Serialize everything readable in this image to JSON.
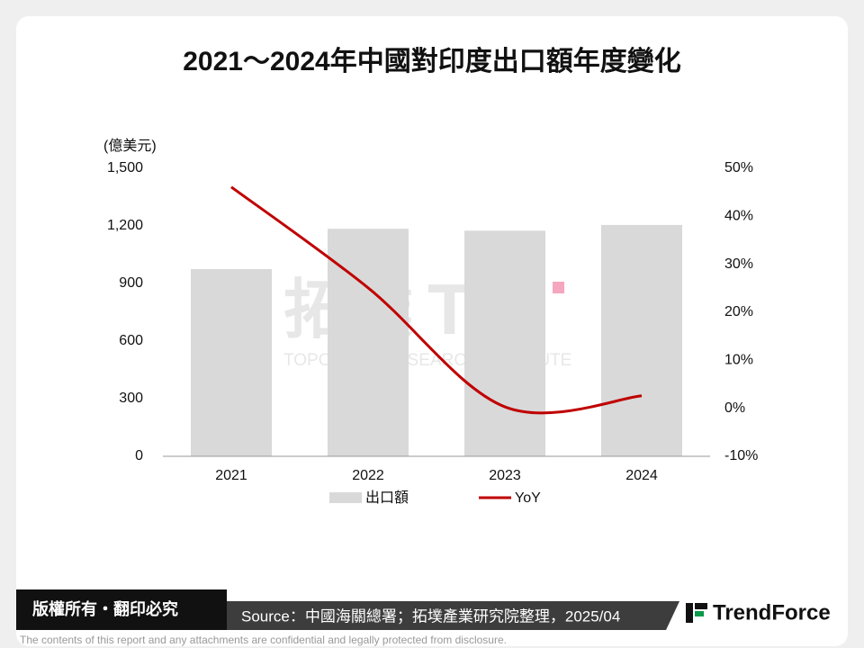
{
  "slide": {
    "title": "2021～2024年中國對印度出口額年度變化"
  },
  "watermark": {
    "logo": "拓墣",
    "mark": "TRI",
    "name": "TOPOLOGY RESEARCH INSTITUTE"
  },
  "chart_data": {
    "type": "combo",
    "y_label": "(億美元)",
    "categories": [
      "2021",
      "2022",
      "2023",
      "2024"
    ],
    "series": [
      {
        "name": "出口額",
        "type": "bar",
        "color": "#d9d9d9",
        "values": [
          975,
          1185,
          1175,
          1205
        ]
      },
      {
        "name": "YoY",
        "type": "line",
        "axis": "y2",
        "color": "#c00000",
        "values": [
          46.1,
          25.1,
          0.3,
          2.6
        ]
      }
    ],
    "ylim": [
      0,
      1500
    ],
    "yticks": [
      0,
      300,
      600,
      900,
      {
        "value": 1200,
        "label": "1,200"
      },
      {
        "value": 1500,
        "label": "1,500"
      }
    ],
    "y2lim": [
      -10,
      50
    ],
    "y2ticks": [
      {
        "value": -10,
        "label": "-10%"
      },
      {
        "value": 0,
        "label": "0%"
      },
      {
        "value": 10,
        "label": "10%"
      },
      {
        "value": 20,
        "label": "20%"
      },
      {
        "value": 30,
        "label": "30%"
      },
      {
        "value": 40,
        "label": "40%"
      },
      {
        "value": 50,
        "label": "50%"
      }
    ],
    "legend": "bottom"
  },
  "footer": {
    "rights": "版權所有・翻印必究",
    "source": "Source：中國海關總署；拓墣產業研究院整理，2025/04",
    "brand": "TrendForce",
    "disclaimer": "The contents of this report and any attachments are confidential and legally protected from disclosure."
  }
}
